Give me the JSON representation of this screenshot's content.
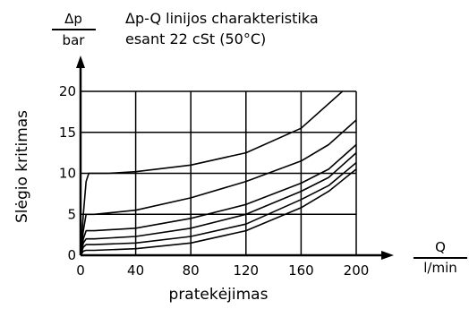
{
  "chart_data": {
    "type": "line",
    "title": "Δp-Q linijos charakteristika",
    "subtitle": "esant 22 cSt (50°C)",
    "xlabel": "pratekėjimas",
    "ylabel": "Slėgio kritimas",
    "x_unit_top": "Q",
    "x_unit_bottom": "l/min",
    "y_unit_top": "Δp",
    "y_unit_bottom": "bar",
    "xlim": [
      0,
      200
    ],
    "ylim": [
      0,
      20
    ],
    "x_ticks": [
      0,
      40,
      80,
      120,
      160,
      200
    ],
    "y_ticks": [
      0,
      5,
      10,
      15,
      20
    ],
    "grid": true,
    "series": [
      {
        "x": [
          0,
          2,
          4,
          6,
          10,
          20,
          40,
          80,
          120,
          160,
          190
        ],
        "y": [
          0,
          5,
          9,
          10,
          10,
          10,
          10.2,
          11,
          12.5,
          15.5,
          20
        ]
      },
      {
        "x": [
          0,
          2,
          4,
          10,
          40,
          80,
          120,
          160,
          180,
          200
        ],
        "y": [
          0,
          3,
          5,
          5,
          5.5,
          7,
          9,
          11.5,
          13.5,
          16.5
        ]
      },
      {
        "x": [
          0,
          2,
          4,
          10,
          40,
          80,
          120,
          160,
          180,
          200
        ],
        "y": [
          0,
          2,
          3,
          3,
          3.3,
          4.5,
          6.2,
          8.8,
          10.5,
          13.5
        ]
      },
      {
        "x": [
          0,
          2,
          4,
          10,
          40,
          80,
          120,
          160,
          180,
          200
        ],
        "y": [
          0,
          1.5,
          2,
          2,
          2.3,
          3.3,
          5,
          7.8,
          9.5,
          12.5
        ]
      },
      {
        "x": [
          0,
          2,
          4,
          10,
          40,
          80,
          120,
          160,
          180,
          200
        ],
        "y": [
          0,
          1,
          1.3,
          1.3,
          1.5,
          2.3,
          3.8,
          6.8,
          8.5,
          11.3
        ]
      },
      {
        "x": [
          0,
          2,
          4,
          10,
          40,
          80,
          120,
          160,
          180,
          200
        ],
        "y": [
          0,
          0.5,
          0.6,
          0.6,
          0.8,
          1.5,
          3,
          5.8,
          7.8,
          10.5
        ]
      }
    ]
  }
}
